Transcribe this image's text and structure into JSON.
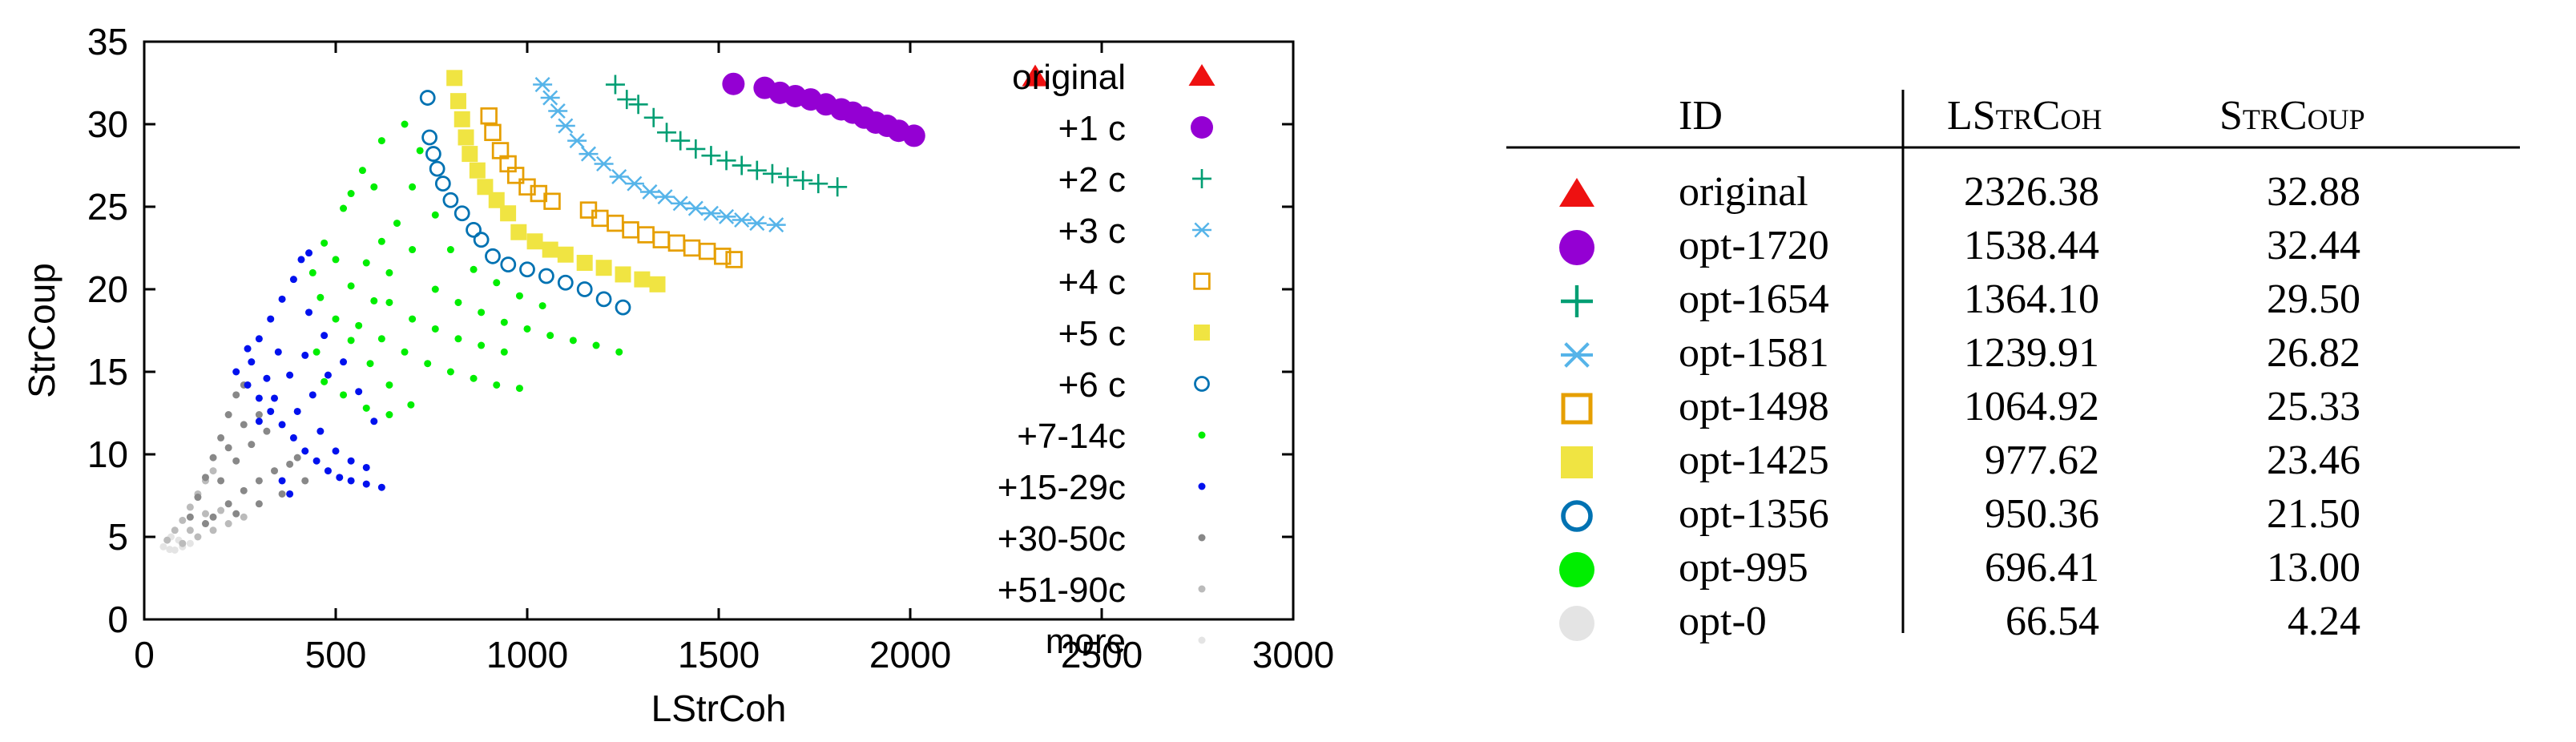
{
  "chart_data": {
    "type": "scatter",
    "xlabel": "LStrCoh",
    "ylabel": "StrCoup",
    "xlim": [
      0,
      3000
    ],
    "ylim": [
      0,
      35
    ],
    "xticks": [
      "0",
      "500",
      "1000",
      "1500",
      "2000",
      "2500",
      "3000"
    ],
    "yticks": [
      "0",
      "5",
      "10",
      "15",
      "20",
      "25",
      "30",
      "35"
    ],
    "grid": false,
    "legend_position": "top-right",
    "series": [
      {
        "name": "original",
        "marker": "triangle",
        "color": "#ee1111",
        "points": [
          [
            2326.38,
            32.88
          ]
        ]
      },
      {
        "name": "+1 c",
        "marker": "filled-circle",
        "color": "#9400d3",
        "points": [
          [
            1538.44,
            32.44
          ],
          [
            1620,
            32.2
          ],
          [
            1660,
            31.9
          ],
          [
            1700,
            31.7
          ],
          [
            1740,
            31.5
          ],
          [
            1780,
            31.2
          ],
          [
            1820,
            30.9
          ],
          [
            1850,
            30.7
          ],
          [
            1880,
            30.4
          ],
          [
            1910,
            30.1
          ],
          [
            1940,
            29.9
          ],
          [
            1970,
            29.6
          ],
          [
            2010,
            29.3
          ]
        ]
      },
      {
        "name": "+2 c",
        "marker": "plus",
        "color": "#009e73",
        "points": [
          [
            1230,
            32.4
          ],
          [
            1260,
            31.5
          ],
          [
            1290,
            31.2
          ],
          [
            1330,
            30.4
          ],
          [
            1364.1,
            29.5
          ],
          [
            1400,
            29.0
          ],
          [
            1440,
            28.5
          ],
          [
            1480,
            28.1
          ],
          [
            1520,
            27.8
          ],
          [
            1560,
            27.5
          ],
          [
            1600,
            27.2
          ],
          [
            1640,
            27.0
          ],
          [
            1680,
            26.8
          ],
          [
            1720,
            26.6
          ],
          [
            1760,
            26.4
          ],
          [
            1810,
            26.2
          ]
        ]
      },
      {
        "name": "+3 c",
        "marker": "asterisk",
        "color": "#56b4e9",
        "points": [
          [
            1040,
            32.4
          ],
          [
            1060,
            31.6
          ],
          [
            1080,
            30.8
          ],
          [
            1100,
            29.9
          ],
          [
            1130,
            29.0
          ],
          [
            1160,
            28.2
          ],
          [
            1200,
            27.6
          ],
          [
            1239.91,
            26.82
          ],
          [
            1280,
            26.4
          ],
          [
            1320,
            25.9
          ],
          [
            1360,
            25.6
          ],
          [
            1400,
            25.2
          ],
          [
            1440,
            24.9
          ],
          [
            1480,
            24.6
          ],
          [
            1520,
            24.4
          ],
          [
            1560,
            24.2
          ],
          [
            1600,
            24.0
          ],
          [
            1650,
            23.9
          ]
        ]
      },
      {
        "name": "+4 c",
        "marker": "open-square",
        "color": "#e69f00",
        "points": [
          [
            900,
            30.5
          ],
          [
            910,
            29.5
          ],
          [
            930,
            28.4
          ],
          [
            950,
            27.6
          ],
          [
            970,
            26.9
          ],
          [
            1000,
            26.2
          ],
          [
            1030,
            25.8
          ],
          [
            1064.92,
            25.33
          ],
          [
            1160,
            24.8
          ],
          [
            1190,
            24.3
          ],
          [
            1230,
            24.0
          ],
          [
            1270,
            23.6
          ],
          [
            1310,
            23.3
          ],
          [
            1350,
            23.0
          ],
          [
            1390,
            22.8
          ],
          [
            1430,
            22.5
          ],
          [
            1470,
            22.3
          ],
          [
            1510,
            22.0
          ],
          [
            1540,
            21.8
          ]
        ]
      },
      {
        "name": "+5 c",
        "marker": "filled-square",
        "color": "#f0e442",
        "points": [
          [
            810,
            32.8
          ],
          [
            820,
            31.4
          ],
          [
            830,
            30.3
          ],
          [
            840,
            29.2
          ],
          [
            850,
            28.2
          ],
          [
            870,
            27.2
          ],
          [
            890,
            26.2
          ],
          [
            920,
            25.4
          ],
          [
            950,
            24.6
          ],
          [
            977.62,
            23.46
          ],
          [
            1020,
            22.9
          ],
          [
            1060,
            22.4
          ],
          [
            1100,
            22.1
          ],
          [
            1150,
            21.6
          ],
          [
            1200,
            21.3
          ],
          [
            1250,
            20.9
          ],
          [
            1300,
            20.6
          ],
          [
            1340,
            20.3
          ]
        ]
      },
      {
        "name": "+6 c",
        "marker": "open-circle",
        "color": "#0072b2",
        "points": [
          [
            740,
            31.6
          ],
          [
            745,
            29.2
          ],
          [
            755,
            28.2
          ],
          [
            765,
            27.3
          ],
          [
            780,
            26.4
          ],
          [
            800,
            25.4
          ],
          [
            830,
            24.6
          ],
          [
            860,
            23.6
          ],
          [
            880,
            23.0
          ],
          [
            910,
            22.0
          ],
          [
            950.36,
            21.5
          ],
          [
            1000,
            21.2
          ],
          [
            1050,
            20.8
          ],
          [
            1100,
            20.4
          ],
          [
            1150,
            20.0
          ],
          [
            1200,
            19.4
          ],
          [
            1250,
            18.9
          ]
        ]
      },
      {
        "name": "+7-14c",
        "marker": "dot",
        "color": "#00ee00",
        "points": [
          [
            696.41,
            13.0
          ],
          [
            640,
            14.2
          ],
          [
            590,
            15.5
          ],
          [
            540,
            16.9
          ],
          [
            500,
            18.2
          ],
          [
            460,
            19.5
          ],
          [
            440,
            21.0
          ],
          [
            470,
            22.8
          ],
          [
            520,
            24.9
          ],
          [
            570,
            27.2
          ],
          [
            620,
            29.0
          ],
          [
            680,
            30.0
          ],
          [
            720,
            28.4
          ],
          [
            700,
            26.2
          ],
          [
            760,
            24.5
          ],
          [
            700,
            22.4
          ],
          [
            640,
            21.0
          ],
          [
            600,
            19.3
          ],
          [
            560,
            17.8
          ],
          [
            620,
            17.0
          ],
          [
            680,
            16.2
          ],
          [
            740,
            15.5
          ],
          [
            800,
            15.0
          ],
          [
            860,
            14.6
          ],
          [
            920,
            14.2
          ],
          [
            980,
            14.0
          ],
          [
            660,
            24.0
          ],
          [
            620,
            22.9
          ],
          [
            580,
            21.6
          ],
          [
            540,
            20.2
          ],
          [
            500,
            21.8
          ],
          [
            760,
            20.0
          ],
          [
            820,
            19.2
          ],
          [
            880,
            18.6
          ],
          [
            940,
            18.0
          ],
          [
            1000,
            17.6
          ],
          [
            1060,
            17.2
          ],
          [
            1120,
            16.9
          ],
          [
            1180,
            16.6
          ],
          [
            1240,
            16.2
          ],
          [
            700,
            18.2
          ],
          [
            640,
            19.2
          ],
          [
            760,
            17.6
          ],
          [
            820,
            17.0
          ],
          [
            880,
            16.6
          ],
          [
            940,
            16.2
          ],
          [
            800,
            22.4
          ],
          [
            860,
            21.2
          ],
          [
            920,
            20.4
          ],
          [
            980,
            19.6
          ],
          [
            1040,
            19.0
          ],
          [
            540,
            25.8
          ],
          [
            600,
            26.2
          ],
          [
            450,
            16.2
          ],
          [
            470,
            14.4
          ],
          [
            520,
            13.6
          ],
          [
            580,
            12.8
          ],
          [
            640,
            12.4
          ]
        ]
      },
      {
        "name": "+15-29c",
        "marker": "dot",
        "color": "#0011ee",
        "points": [
          [
            240,
            15.0
          ],
          [
            270,
            14.2
          ],
          [
            300,
            13.4
          ],
          [
            330,
            12.6
          ],
          [
            360,
            11.8
          ],
          [
            390,
            11.0
          ],
          [
            420,
            10.2
          ],
          [
            450,
            9.6
          ],
          [
            480,
            9.0
          ],
          [
            510,
            8.6
          ],
          [
            540,
            8.4
          ],
          [
            580,
            8.2
          ],
          [
            620,
            8.0
          ],
          [
            380,
            7.6
          ],
          [
            360,
            8.4
          ],
          [
            280,
            15.6
          ],
          [
            300,
            17.0
          ],
          [
            330,
            18.2
          ],
          [
            360,
            19.4
          ],
          [
            390,
            20.6
          ],
          [
            410,
            21.8
          ],
          [
            430,
            22.2
          ],
          [
            300,
            12.0
          ],
          [
            340,
            13.4
          ],
          [
            380,
            14.8
          ],
          [
            420,
            16.0
          ],
          [
            400,
            12.6
          ],
          [
            440,
            13.6
          ],
          [
            480,
            14.8
          ],
          [
            520,
            15.6
          ],
          [
            560,
            13.8
          ],
          [
            600,
            12.0
          ],
          [
            460,
            11.4
          ],
          [
            500,
            10.2
          ],
          [
            540,
            9.6
          ],
          [
            580,
            9.2
          ],
          [
            430,
            18.6
          ],
          [
            470,
            17.2
          ],
          [
            350,
            16.2
          ],
          [
            320,
            14.6
          ],
          [
            270,
            16.4
          ]
        ]
      },
      {
        "name": "+30-50c",
        "marker": "dot",
        "color": "#888888",
        "points": [
          [
            120,
            6.2
          ],
          [
            140,
            7.4
          ],
          [
            160,
            8.6
          ],
          [
            180,
            9.8
          ],
          [
            200,
            11.0
          ],
          [
            220,
            12.4
          ],
          [
            240,
            13.6
          ],
          [
            260,
            14.2
          ],
          [
            180,
            6.2
          ],
          [
            220,
            7.0
          ],
          [
            260,
            7.8
          ],
          [
            300,
            8.4
          ],
          [
            340,
            9.0
          ],
          [
            380,
            9.4
          ],
          [
            420,
            8.4
          ],
          [
            360,
            7.6
          ],
          [
            300,
            7.0
          ],
          [
            240,
            6.4
          ],
          [
            200,
            8.4
          ],
          [
            240,
            9.6
          ],
          [
            280,
            10.6
          ],
          [
            320,
            11.4
          ],
          [
            300,
            12.4
          ],
          [
            260,
            11.8
          ],
          [
            220,
            10.4
          ],
          [
            160,
            5.8
          ],
          [
            400,
            9.8
          ]
        ]
      },
      {
        "name": "+51-90c",
        "marker": "dot",
        "color": "#bbbbbb",
        "points": [
          [
            60,
            4.8
          ],
          [
            80,
            5.4
          ],
          [
            100,
            6.0
          ],
          [
            120,
            6.8
          ],
          [
            140,
            7.6
          ],
          [
            160,
            8.4
          ],
          [
            180,
            9.0
          ],
          [
            100,
            4.6
          ],
          [
            140,
            5.0
          ],
          [
            180,
            5.4
          ],
          [
            220,
            5.8
          ],
          [
            260,
            6.2
          ],
          [
            200,
            6.6
          ],
          [
            160,
            6.4
          ],
          [
            120,
            5.4
          ]
        ]
      },
      {
        "name": "more",
        "marker": "dot",
        "color": "#e4e4e4",
        "points": [
          [
            66.54,
            4.24
          ],
          [
            50,
            4.4
          ],
          [
            80,
            4.2
          ],
          [
            100,
            4.4
          ],
          [
            120,
            4.6
          ],
          [
            90,
            4.8
          ],
          [
            70,
            5.0
          ]
        ]
      }
    ]
  },
  "table": {
    "headers": {
      "id": "ID",
      "lstrcoh": "LStrCoh",
      "strcoup": "StrCoup"
    },
    "rows": [
      {
        "marker": "triangle",
        "color": "#ee1111",
        "id": "original",
        "lstrcoh": "2326.38",
        "strcoup": "32.88"
      },
      {
        "marker": "filled-circle",
        "color": "#9400d3",
        "id": "opt-1720",
        "lstrcoh": "1538.44",
        "strcoup": "32.44"
      },
      {
        "marker": "plus",
        "color": "#009e73",
        "id": "opt-1654",
        "lstrcoh": "1364.10",
        "strcoup": "29.50"
      },
      {
        "marker": "asterisk",
        "color": "#56b4e9",
        "id": "opt-1581",
        "lstrcoh": "1239.91",
        "strcoup": "26.82"
      },
      {
        "marker": "open-square",
        "color": "#e69f00",
        "id": "opt-1498",
        "lstrcoh": "1064.92",
        "strcoup": "25.33"
      },
      {
        "marker": "filled-square",
        "color": "#f0e442",
        "id": "opt-1425",
        "lstrcoh": "977.62",
        "strcoup": "23.46"
      },
      {
        "marker": "open-circle",
        "color": "#0072b2",
        "id": "opt-1356",
        "lstrcoh": "950.36",
        "strcoup": "21.50"
      },
      {
        "marker": "filled-circle",
        "color": "#00ee00",
        "id": "opt-995",
        "lstrcoh": "696.41",
        "strcoup": "13.00"
      },
      {
        "marker": "filled-circle",
        "color": "#e4e4e4",
        "id": "opt-0",
        "lstrcoh": "66.54",
        "strcoup": "4.24"
      }
    ]
  }
}
